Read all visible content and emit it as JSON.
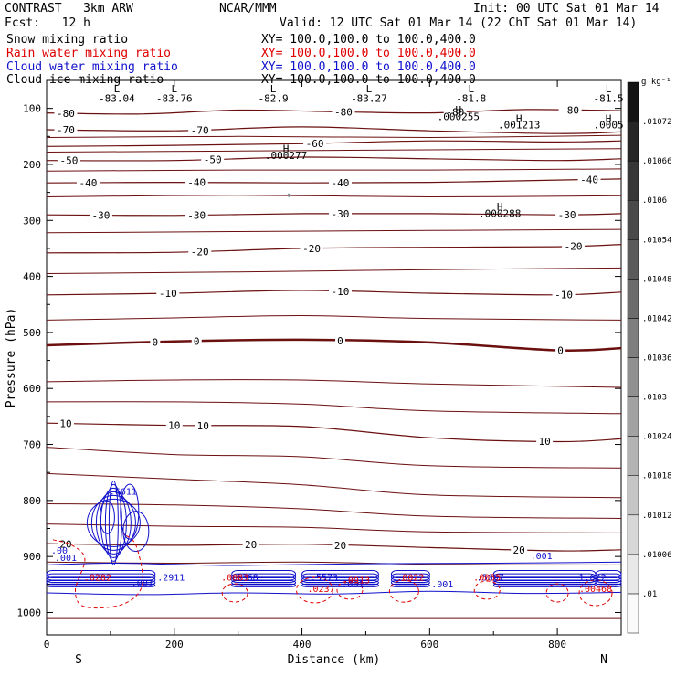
{
  "header": {
    "model": "CONTRAST   3km ARW",
    "org": "NCAR/MMM",
    "init": "Init: 00 UTC Sat 01 Mar 14",
    "fcst": "Fcst:   12 h",
    "valid": "Valid: 12 UTC Sat 01 Mar 14 (22 ChT Sat 01 Mar 14)",
    "fields": [
      {
        "name": "Snow mixing ratio",
        "xy": "XY= 100.0,100.0 to 100.0,400.0",
        "color": "#000000"
      },
      {
        "name": "Rain water mixing ratio",
        "xy": "XY= 100.0,100.0 to 100.0,400.0",
        "color": "#e00000"
      },
      {
        "name": "Cloud water mixing ratio",
        "xy": "XY= 100.0,100.0 to 100.0,400.0",
        "color": "#1010cc"
      },
      {
        "name": "Cloud ice mixing ratio",
        "xy": "XY= 100.0,100.0 to 100.0,400.0",
        "color": "#000000"
      }
    ]
  },
  "chart_data": {
    "type": "contour",
    "xlabel": "Distance (km)",
    "ylabel": "Pressure (hPa)",
    "xlim": [
      0,
      900
    ],
    "ylim": [
      1040,
      50
    ],
    "x_ticks": [
      0,
      200,
      400,
      600,
      800
    ],
    "y_ticks": [
      100,
      200,
      300,
      400,
      500,
      600,
      700,
      800,
      900,
      1000
    ],
    "x_end_labels": {
      "left": "S",
      "right": "N"
    },
    "colors": {
      "temperature": "#6b0f0f",
      "cloud_water": "#1010cc",
      "rain": "#e00000",
      "snow_ice": "#000000"
    },
    "temperature_contours": [
      {
        "level": -80,
        "points": [
          [
            0,
            108
          ],
          [
            150,
            110
          ],
          [
            300,
            103
          ],
          [
            450,
            106
          ],
          [
            600,
            108
          ],
          [
            750,
            102
          ],
          [
            900,
            104
          ]
        ],
        "labels": [
          {
            "x": 30,
            "text": "-80"
          },
          {
            "x": 465,
            "text": "-80"
          },
          {
            "x": 640,
            "text": "-80"
          },
          {
            "x": 820,
            "text": "-80"
          }
        ]
      },
      {
        "level": -70,
        "points": [
          [
            0,
            138
          ],
          [
            200,
            140
          ],
          [
            400,
            133
          ],
          [
            600,
            140
          ],
          [
            800,
            145
          ],
          [
            900,
            142
          ]
        ],
        "labels": [
          {
            "x": 30,
            "text": "-70"
          },
          {
            "x": 240,
            "text": "-70"
          }
        ]
      },
      {
        "level": -60,
        "points": [
          [
            0,
            168
          ],
          [
            200,
            166
          ],
          [
            400,
            163
          ],
          [
            600,
            158
          ],
          [
            800,
            160
          ],
          [
            900,
            158
          ]
        ],
        "labels": [
          {
            "x": 420,
            "text": "-60"
          }
        ]
      },
      {
        "level": -50,
        "points": [
          [
            0,
            193
          ],
          [
            200,
            193
          ],
          [
            400,
            187
          ],
          [
            600,
            190
          ],
          [
            800,
            193
          ],
          [
            900,
            190
          ]
        ],
        "labels": [
          {
            "x": 35,
            "text": "-50"
          },
          {
            "x": 260,
            "text": "-50"
          }
        ]
      },
      {
        "level": -40,
        "points": [
          [
            0,
            233
          ],
          [
            200,
            232
          ],
          [
            400,
            233
          ],
          [
            600,
            232
          ],
          [
            800,
            228
          ],
          [
            900,
            226
          ]
        ],
        "labels": [
          {
            "x": 65,
            "text": "-40"
          },
          {
            "x": 235,
            "text": "-40"
          },
          {
            "x": 460,
            "text": "-40"
          },
          {
            "x": 850,
            "text": "-40"
          }
        ]
      },
      {
        "level": -30,
        "points": [
          [
            0,
            290
          ],
          [
            200,
            291
          ],
          [
            400,
            288
          ],
          [
            600,
            288
          ],
          [
            800,
            290
          ],
          [
            900,
            288
          ]
        ],
        "labels": [
          {
            "x": 85,
            "text": "-30"
          },
          {
            "x": 235,
            "text": "-30"
          },
          {
            "x": 460,
            "text": "-30"
          },
          {
            "x": 815,
            "text": "-30"
          }
        ]
      },
      {
        "level": -20,
        "points": [
          [
            0,
            358
          ],
          [
            200,
            357
          ],
          [
            400,
            350
          ],
          [
            600,
            348
          ],
          [
            800,
            347
          ],
          [
            900,
            343
          ]
        ],
        "labels": [
          {
            "x": 240,
            "text": "-20"
          },
          {
            "x": 415,
            "text": "-20"
          },
          {
            "x": 825,
            "text": "-20"
          }
        ]
      },
      {
        "level": -10,
        "points": [
          [
            0,
            433
          ],
          [
            200,
            430
          ],
          [
            400,
            425
          ],
          [
            600,
            430
          ],
          [
            800,
            433
          ],
          [
            900,
            428
          ]
        ],
        "labels": [
          {
            "x": 190,
            "text": "-10"
          },
          {
            "x": 460,
            "text": "-10"
          },
          {
            "x": 810,
            "text": "-10"
          }
        ]
      },
      {
        "level": 0,
        "points": [
          [
            0,
            523
          ],
          [
            200,
            516
          ],
          [
            400,
            513
          ],
          [
            600,
            518
          ],
          [
            800,
            532
          ],
          [
            900,
            528
          ]
        ],
        "labels": [
          {
            "x": 170,
            "text": "0"
          },
          {
            "x": 235,
            "text": "0"
          },
          {
            "x": 460,
            "text": "0"
          },
          {
            "x": 805,
            "text": "0"
          }
        ]
      },
      {
        "level": 10,
        "points": [
          [
            0,
            662
          ],
          [
            200,
            666
          ],
          [
            400,
            668
          ],
          [
            600,
            688
          ],
          [
            800,
            695
          ],
          [
            900,
            690
          ]
        ],
        "labels": [
          {
            "x": 30,
            "text": "10"
          },
          {
            "x": 200,
            "text": "10"
          },
          {
            "x": 245,
            "text": "10"
          },
          {
            "x": 780,
            "text": "10"
          }
        ]
      },
      {
        "level": 20,
        "points": [
          [
            0,
            877
          ],
          [
            200,
            880
          ],
          [
            400,
            878
          ],
          [
            600,
            884
          ],
          [
            800,
            890
          ],
          [
            900,
            888
          ]
        ],
        "labels": [
          {
            "x": 30,
            "text": "20"
          },
          {
            "x": 320,
            "text": "20"
          },
          {
            "x": 460,
            "text": "20"
          },
          {
            "x": 740,
            "text": "20"
          }
        ]
      }
    ],
    "extra_isotherms": [
      [
        [
          0,
          152
        ],
        [
          300,
          150
        ],
        [
          600,
          152
        ],
        [
          900,
          148
        ]
      ],
      [
        [
          0,
          178
        ],
        [
          300,
          176
        ],
        [
          600,
          174
        ],
        [
          900,
          172
        ]
      ],
      [
        [
          0,
          212
        ],
        [
          300,
          210
        ],
        [
          600,
          210
        ],
        [
          900,
          208
        ]
      ],
      [
        [
          0,
          258
        ],
        [
          300,
          255
        ],
        [
          600,
          258
        ],
        [
          900,
          256
        ]
      ],
      [
        [
          0,
          322
        ],
        [
          300,
          320
        ],
        [
          600,
          318
        ],
        [
          900,
          316
        ]
      ],
      [
        [
          0,
          395
        ],
        [
          300,
          392
        ],
        [
          600,
          388
        ],
        [
          900,
          385
        ]
      ],
      [
        [
          0,
          478
        ],
        [
          200,
          474
        ],
        [
          400,
          470
        ],
        [
          600,
          475
        ],
        [
          900,
          478
        ]
      ],
      [
        [
          0,
          588
        ],
        [
          200,
          585
        ],
        [
          400,
          585
        ],
        [
          600,
          592
        ],
        [
          900,
          598
        ]
      ],
      [
        [
          0,
          624
        ],
        [
          200,
          624
        ],
        [
          400,
          628
        ],
        [
          600,
          640
        ],
        [
          900,
          645
        ]
      ],
      [
        [
          0,
          705
        ],
        [
          200,
          718
        ],
        [
          400,
          722
        ],
        [
          600,
          738
        ],
        [
          900,
          742
        ]
      ],
      [
        [
          0,
          752
        ],
        [
          200,
          762
        ],
        [
          400,
          772
        ],
        [
          600,
          790
        ],
        [
          900,
          795
        ]
      ],
      [
        [
          0,
          806
        ],
        [
          200,
          808
        ],
        [
          400,
          815
        ],
        [
          600,
          828
        ],
        [
          900,
          832
        ]
      ],
      [
        [
          0,
          842
        ],
        [
          200,
          846
        ],
        [
          400,
          848
        ],
        [
          600,
          856
        ],
        [
          900,
          858
        ]
      ],
      [
        [
          0,
          910
        ],
        [
          200,
          912
        ],
        [
          400,
          910
        ],
        [
          600,
          914
        ],
        [
          900,
          915
        ]
      ],
      [
        [
          0,
          1010
        ],
        [
          900,
          1010
        ]
      ]
    ],
    "min_labels": [
      {
        "x": 110,
        "p": 76,
        "mark": "L",
        "value": "-83.04"
      },
      {
        "x": 200,
        "p": 76,
        "mark": "L",
        "value": "-83.76"
      },
      {
        "x": 355,
        "p": 76,
        "mark": "L",
        "value": "-82.9"
      },
      {
        "x": 505,
        "p": 76,
        "mark": "L",
        "value": "-83.27"
      },
      {
        "x": 665,
        "p": 76,
        "mark": "L",
        "value": "-81.8"
      },
      {
        "x": 880,
        "p": 76,
        "mark": "L",
        "value": "-81.5"
      }
    ],
    "snow_ice_maxima": [
      {
        "x": 645,
        "p": 113,
        "value": ".000255"
      },
      {
        "x": 740,
        "p": 128,
        "value": ".001213"
      },
      {
        "x": 880,
        "p": 128,
        "value": ".0005"
      },
      {
        "x": 375,
        "p": 182,
        "value": ".000277"
      },
      {
        "x": 710,
        "p": 286,
        "value": ".000288"
      }
    ],
    "cloud_labels": [
      {
        "x": 120,
        "p": 790,
        "value": ".6611"
      },
      {
        "x": 20,
        "p": 895,
        "value": ".00"
      },
      {
        "x": 30,
        "p": 908,
        "value": ".001"
      },
      {
        "x": 150,
        "p": 953,
        "value": ".001"
      },
      {
        "x": 195,
        "p": 943,
        "value": ".2911"
      },
      {
        "x": 310,
        "p": 943,
        "value": ".5368"
      },
      {
        "x": 435,
        "p": 943,
        "value": ".5573"
      },
      {
        "x": 480,
        "p": 955,
        "value": ".001"
      },
      {
        "x": 620,
        "p": 955,
        "value": ".001"
      },
      {
        "x": 695,
        "p": 943,
        "value": ".5097"
      },
      {
        "x": 775,
        "p": 905,
        "value": ".001"
      },
      {
        "x": 855,
        "p": 943,
        "value": "1.622"
      }
    ],
    "rain_labels": [
      {
        "x": 80,
        "p": 943,
        "value": ".0282"
      },
      {
        "x": 295,
        "p": 943,
        "value": ".0083"
      },
      {
        "x": 430,
        "p": 963,
        "value": ".0237"
      },
      {
        "x": 485,
        "p": 948,
        "value": ".0913"
      },
      {
        "x": 570,
        "p": 943,
        "value": ".0022"
      },
      {
        "x": 690,
        "p": 943,
        "value": ".0055"
      },
      {
        "x": 860,
        "p": 963,
        "value": ".00468"
      }
    ],
    "colorbar": {
      "units": "g kg⁻¹",
      "levels": [
        ".01",
        ".01006",
        ".01012",
        ".01018",
        ".01024",
        ".0103",
        ".01036",
        ".01042",
        ".01048",
        ".01054",
        ".0106",
        ".01066",
        ".01072"
      ]
    }
  }
}
